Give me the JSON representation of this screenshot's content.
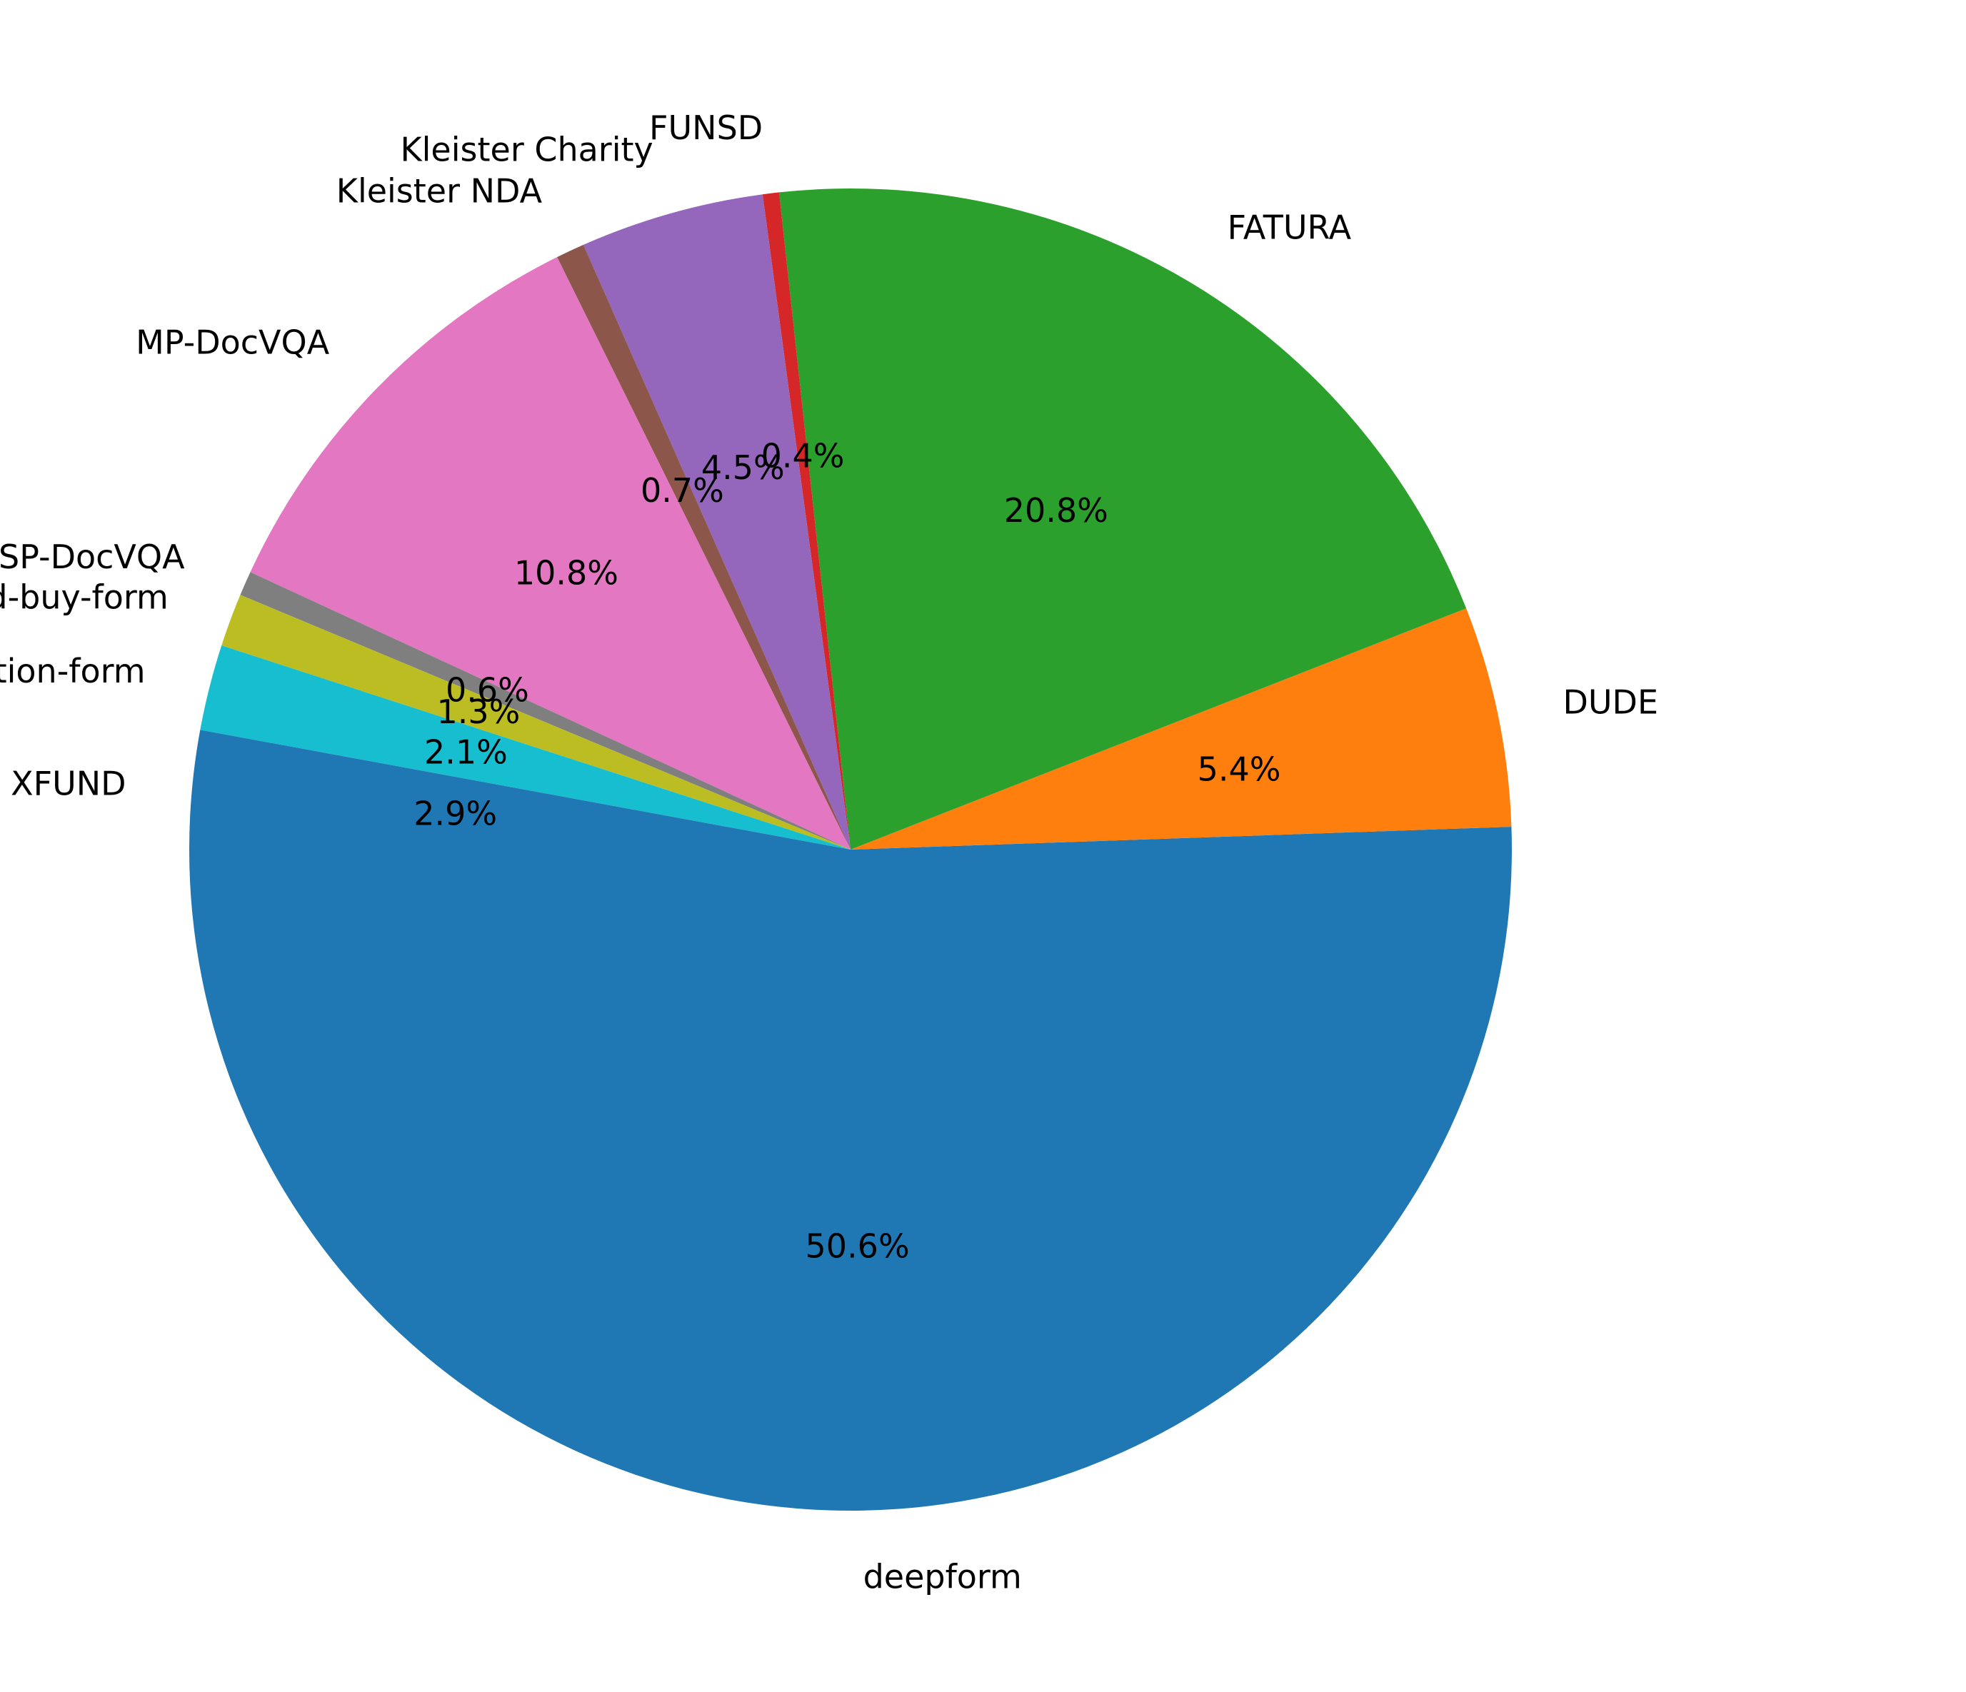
{
  "chart_data": {
    "type": "pie",
    "title": "",
    "start_angle_deg": 180,
    "direction": "counterclockwise",
    "slices": [
      {
        "label": "deepform",
        "value": 50.6,
        "pct_label": "50.6%",
        "color": "#1f77b4"
      },
      {
        "label": "DUDE",
        "value": 5.4,
        "pct_label": "5.4%",
        "color": "#ff7f0e"
      },
      {
        "label": "FATURA",
        "value": 20.8,
        "pct_label": "20.8%",
        "color": "#2ca02c"
      },
      {
        "label": "FUNSD",
        "value": 0.4,
        "pct_label": "0.4%",
        "color": "#d62728"
      },
      {
        "label": "Kleister Charity",
        "value": 4.5,
        "pct_label": "4.5%",
        "color": "#9467bd"
      },
      {
        "label": "Kleister NDA",
        "value": 0.7,
        "pct_label": "0.7%",
        "color": "#8c564b"
      },
      {
        "label": "MP-DocVQA",
        "value": 10.8,
        "pct_label": "10.8%",
        "color": "#e377c2"
      },
      {
        "label": "SP-DocVQA",
        "value": 0.6,
        "pct_label": "0.6%",
        "color": "#7f7f7f"
      },
      {
        "label": "vrdu/ad-buy-form",
        "value": 1.3,
        "pct_label": "1.3%",
        "color": "#bcbd22"
      },
      {
        "label": "vrdu/registration-form",
        "value": 2.1,
        "pct_label": "2.1%",
        "color": "#17becf"
      },
      {
        "label": "XFUND",
        "value": 2.9,
        "pct_label": "2.9%",
        "color": "#1f77b4"
      }
    ]
  }
}
